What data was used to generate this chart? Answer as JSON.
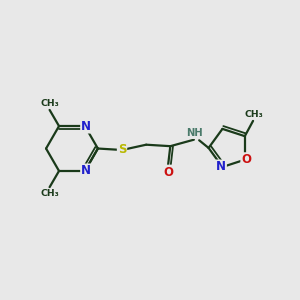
{
  "bg_color": "#e8e8e8",
  "bond_color": "#1a3a1a",
  "N_color": "#2020cc",
  "O_color": "#cc1111",
  "S_color": "#b8b800",
  "H_color": "#4a7a6a",
  "lw": 1.6,
  "lw2": 1.3,
  "fs": 8.5,
  "fs_small": 7.2,
  "figsize": [
    3.0,
    3.0
  ],
  "dpi": 100,
  "xlim": [
    0,
    10
  ],
  "ylim": [
    0,
    10
  ]
}
